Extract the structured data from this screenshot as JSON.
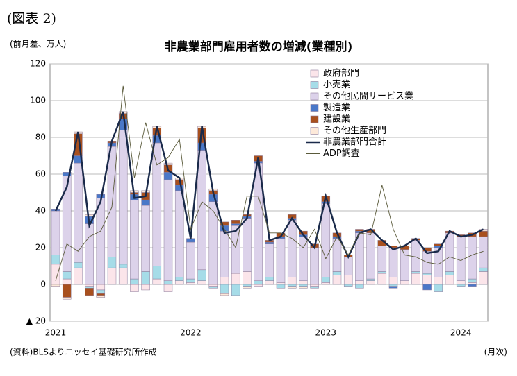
{
  "header": {
    "figure_no": "(図表 2)",
    "unit": "(前月差、万人)",
    "source": "(資料)BLSよりニッセイ基礎研究所作成",
    "x_unit": "(月次)"
  },
  "chart_data": {
    "type": "stacked_bar_line",
    "title": "非農業部門雇用者数の増減(業種別)",
    "categories": [
      "2021",
      null,
      null,
      null,
      null,
      null,
      null,
      null,
      null,
      null,
      null,
      null,
      "2022",
      null,
      null,
      null,
      null,
      null,
      null,
      null,
      null,
      null,
      null,
      null,
      "2023",
      null,
      null,
      null,
      null,
      null,
      null,
      null,
      null,
      null,
      null,
      null,
      "2024",
      null,
      null
    ],
    "ylim": [
      -20,
      120
    ],
    "yticks": [
      {
        "value": -20,
        "label": "▲ 20"
      },
      0,
      20,
      40,
      60,
      80,
      100,
      120
    ],
    "legend": "upper-right",
    "series": [
      {
        "name": "政府部門",
        "color": "#fbe5ea",
        "kind": "bar",
        "values": [
          11,
          3,
          9,
          -1,
          -3,
          9,
          9,
          -4,
          -3,
          3,
          -4,
          2,
          1,
          2,
          -1,
          4,
          6,
          7,
          -1,
          2,
          1,
          4,
          2,
          -1,
          1,
          5,
          5,
          2,
          2,
          6,
          4,
          2,
          6,
          5,
          4,
          5,
          2,
          1,
          7
        ]
      },
      {
        "name": "小売業",
        "color": "#a6dce8",
        "kind": "bar",
        "values": [
          5,
          4,
          3,
          -1,
          -2,
          6,
          2,
          3,
          7,
          7,
          2,
          2,
          2,
          6,
          -1,
          -5,
          -6,
          -1,
          2,
          2,
          -2,
          -1,
          -1,
          -1,
          3,
          2,
          -1,
          -2,
          1,
          1,
          -1,
          0,
          1,
          1,
          -4,
          2,
          -1,
          2,
          2
        ]
      },
      {
        "name": "その他民間サービス業",
        "color": "#dcd2ea",
        "kind": "bar",
        "values": [
          24,
          52,
          54,
          33,
          47,
          60,
          73,
          43,
          36,
          67,
          55,
          47,
          20,
          65,
          45,
          25,
          26,
          29,
          64,
          18,
          24,
          31,
          24,
          20,
          40,
          18,
          10,
          26,
          25,
          14,
          16,
          17,
          17,
          12,
          16,
          21,
          24,
          23,
          17
        ]
      },
      {
        "name": "製造業",
        "color": "#4a78c8",
        "kind": "bar",
        "values": [
          1,
          2,
          4,
          4,
          2,
          2,
          6,
          3,
          3,
          4,
          4,
          3,
          2,
          4,
          4,
          3,
          1,
          1,
          1,
          1,
          1,
          1,
          1,
          0,
          1,
          1,
          0,
          1,
          0,
          0,
          -1,
          0,
          0,
          -3,
          1,
          0,
          0,
          -1,
          0
        ]
      },
      {
        "name": "建設業",
        "color": "#a8501e",
        "kind": "bar",
        "values": [
          0,
          -7,
          12,
          -4,
          -1,
          1,
          3,
          1,
          4,
          4,
          4,
          3,
          0,
          8,
          2,
          2,
          2,
          1,
          3,
          1,
          2,
          2,
          2,
          2,
          3,
          2,
          1,
          1,
          2,
          3,
          1,
          2,
          1,
          2,
          1,
          1,
          1,
          2,
          3
        ]
      },
      {
        "name": "その他生産部門",
        "color": "#fde9d9",
        "kind": "bar",
        "values": [
          -1,
          -1,
          1,
          1,
          -1,
          0,
          1,
          1,
          1,
          1,
          1,
          1,
          0,
          1,
          1,
          -1,
          0,
          -1,
          0,
          0,
          0,
          -1,
          -1,
          0,
          0,
          0,
          0,
          0,
          0,
          0,
          0,
          0,
          0,
          0,
          0,
          0,
          0,
          0,
          1
        ]
      },
      {
        "name": "非農業部門合計",
        "color": "#1a2a4a",
        "kind": "line",
        "values": [
          40,
          53,
          83,
          32,
          45,
          78,
          94,
          47,
          48,
          86,
          62,
          58,
          25,
          86,
          50,
          28,
          29,
          36,
          69,
          24,
          26,
          36,
          27,
          20,
          48,
          28,
          15,
          28,
          30,
          24,
          19,
          21,
          25,
          17,
          18,
          29,
          26,
          27,
          30
        ]
      },
      {
        "name": "ADP調査",
        "color": "#5a5a3a",
        "kind": "thin-line",
        "values": [
          2,
          22,
          18,
          26,
          29,
          42,
          108,
          58,
          88,
          65,
          69,
          79,
          30,
          45,
          40,
          30,
          20,
          48,
          48,
          28,
          28,
          25,
          20,
          30,
          14,
          26,
          16,
          28,
          27,
          54,
          30,
          16,
          15,
          12,
          11,
          15,
          13,
          16,
          18
        ]
      }
    ]
  }
}
